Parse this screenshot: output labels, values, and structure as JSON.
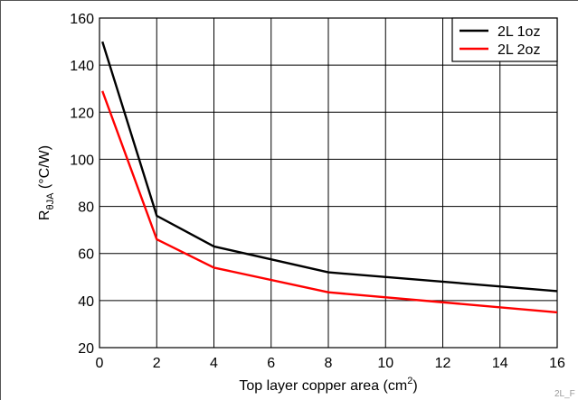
{
  "chart_data": {
    "type": "line",
    "title": "",
    "xlabel": {
      "text": "Top layer copper area (cm",
      "sup": "2",
      "tail": ")"
    },
    "ylabel": {
      "text": "R",
      "sub": "θJA",
      "tail": " (°C/W)"
    },
    "xlim": [
      0,
      16
    ],
    "ylim": [
      20,
      160
    ],
    "xticks": [
      0,
      2,
      4,
      6,
      8,
      10,
      12,
      14,
      16
    ],
    "yticks": [
      20,
      40,
      60,
      80,
      100,
      120,
      140,
      160
    ],
    "grid": true,
    "legend_position": "top-right",
    "series": [
      {
        "name": "2L 1oz",
        "color": "#000000",
        "x": [
          0.1,
          2,
          4,
          8,
          16
        ],
        "y": [
          150,
          76,
          63,
          52,
          44
        ]
      },
      {
        "name": "2L 2oz",
        "color": "#ff0000",
        "x": [
          0.1,
          2,
          4,
          8,
          16
        ],
        "y": [
          129,
          66,
          54,
          43.5,
          35
        ]
      }
    ]
  },
  "figure_id": "2L_F"
}
